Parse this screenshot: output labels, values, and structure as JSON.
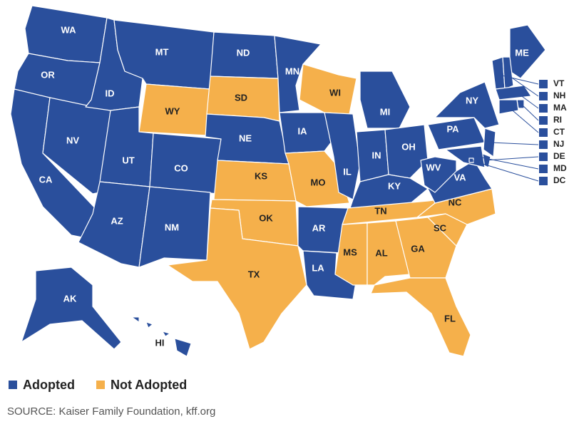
{
  "states": [
    {
      "label": "WA",
      "status": "Adopted"
    },
    {
      "label": "OR",
      "status": "Adopted"
    },
    {
      "label": "CA",
      "status": "Adopted"
    },
    {
      "label": "NV",
      "status": "Adopted"
    },
    {
      "label": "ID",
      "status": "Adopted"
    },
    {
      "label": "MT",
      "status": "Adopted"
    },
    {
      "label": "WY",
      "status": "Not Adopted"
    },
    {
      "label": "UT",
      "status": "Adopted"
    },
    {
      "label": "AZ",
      "status": "Adopted"
    },
    {
      "label": "CO",
      "status": "Adopted"
    },
    {
      "label": "NM",
      "status": "Adopted"
    },
    {
      "label": "ND",
      "status": "Adopted"
    },
    {
      "label": "SD",
      "status": "Not Adopted"
    },
    {
      "label": "NE",
      "status": "Adopted"
    },
    {
      "label": "KS",
      "status": "Not Adopted"
    },
    {
      "label": "OK",
      "status": "Not Adopted"
    },
    {
      "label": "TX",
      "status": "Not Adopted"
    },
    {
      "label": "MN",
      "status": "Adopted"
    },
    {
      "label": "IA",
      "status": "Adopted"
    },
    {
      "label": "MO",
      "status": "Not Adopted"
    },
    {
      "label": "AR",
      "status": "Adopted"
    },
    {
      "label": "LA",
      "status": "Adopted"
    },
    {
      "label": "WI",
      "status": "Not Adopted"
    },
    {
      "label": "IL",
      "status": "Adopted"
    },
    {
      "label": "MI",
      "status": "Adopted"
    },
    {
      "label": "IN",
      "status": "Adopted"
    },
    {
      "label": "OH",
      "status": "Adopted"
    },
    {
      "label": "KY",
      "status": "Adopted"
    },
    {
      "label": "TN",
      "status": "Not Adopted"
    },
    {
      "label": "MS",
      "status": "Not Adopted"
    },
    {
      "label": "AL",
      "status": "Not Adopted"
    },
    {
      "label": "GA",
      "status": "Not Adopted"
    },
    {
      "label": "FL",
      "status": "Not Adopted"
    },
    {
      "label": "SC",
      "status": "Not Adopted"
    },
    {
      "label": "NC",
      "status": "Not Adopted"
    },
    {
      "label": "VA",
      "status": "Adopted"
    },
    {
      "label": "WV",
      "status": "Adopted"
    },
    {
      "label": "PA",
      "status": "Adopted"
    },
    {
      "label": "NY",
      "status": "Adopted"
    },
    {
      "label": "ME",
      "status": "Adopted"
    },
    {
      "label": "VT",
      "status": "Adopted"
    },
    {
      "label": "NH",
      "status": "Adopted"
    },
    {
      "label": "MA",
      "status": "Adopted"
    },
    {
      "label": "RI",
      "status": "Adopted"
    },
    {
      "label": "CT",
      "status": "Adopted"
    },
    {
      "label": "NJ",
      "status": "Adopted"
    },
    {
      "label": "DE",
      "status": "Adopted"
    },
    {
      "label": "MD",
      "status": "Adopted"
    },
    {
      "label": "DC",
      "status": "Adopted"
    },
    {
      "label": "AK",
      "status": "Adopted"
    },
    {
      "label": "HI",
      "status": "Adopted"
    }
  ],
  "legend": [
    {
      "label": "Adopted",
      "color": "#2a4f9c"
    },
    {
      "label": "Not Adopted",
      "color": "#f5b04b"
    }
  ],
  "source": "SOURCE: Kaiser Family Foundation, kff.org"
}
